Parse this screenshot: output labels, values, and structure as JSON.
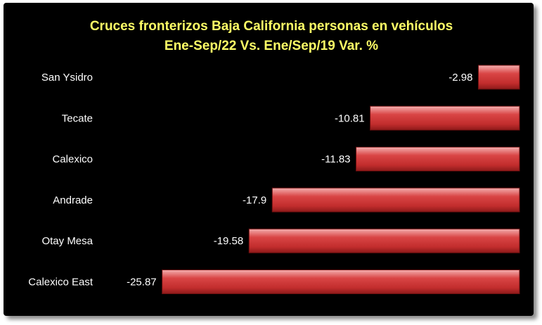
{
  "chart_data": {
    "type": "bar",
    "orientation": "horizontal",
    "title": [
      "Cruces fronterizos Baja California personas  en vehículos",
      "Ene-Sep/22 Vs. Ene/Sep/19 Var. %"
    ],
    "categories": [
      "San Ysidro",
      "Tecate",
      "Calexico",
      "Andrade",
      "Otay Mesa",
      "Calexico East"
    ],
    "values": [
      -2.98,
      -10.81,
      -11.83,
      -17.9,
      -19.58,
      -25.87
    ],
    "xlim": [
      -27,
      0
    ],
    "grid": false,
    "legend": "none",
    "colors": {
      "bar": "#d23a3a",
      "bar_highlight": "#f2a3a3",
      "bar_shadow": "#9e1e1e",
      "background": "#000000",
      "title": "#ffff66",
      "text": "#ffffff"
    }
  }
}
